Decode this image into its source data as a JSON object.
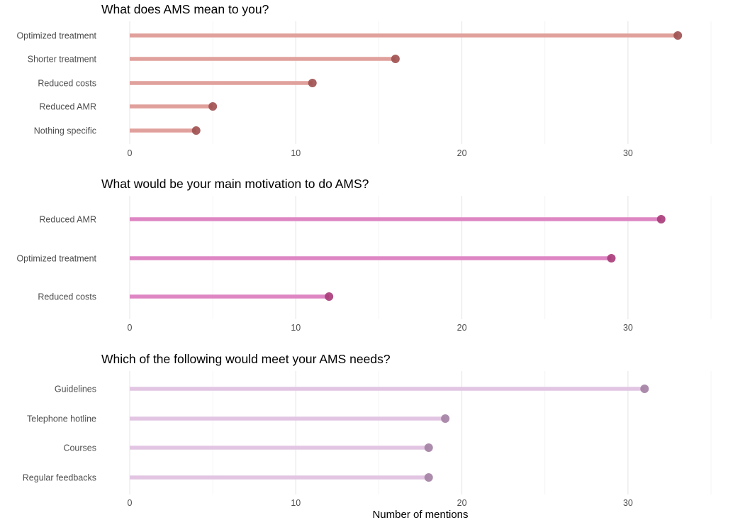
{
  "x_axis_label": "Number of mentions",
  "chart_data": [
    {
      "type": "lollipop",
      "title": "What does AMS mean to you?",
      "categories": [
        "Optimized treatment",
        "Shorter treatment",
        "Reduced costs",
        "Reduced AMR",
        "Nothing specific"
      ],
      "values": [
        33,
        16,
        11,
        5,
        4
      ],
      "xlim": [
        0,
        35
      ],
      "xticks": [
        0,
        10,
        20,
        30
      ],
      "grid": true,
      "colors": {
        "stem": "#e0a09c",
        "point": "#9e4f4f"
      }
    },
    {
      "type": "lollipop",
      "title": "What would be your main motivation to do AMS?",
      "categories": [
        "Reduced AMR",
        "Optimized treatment",
        "Reduced costs"
      ],
      "values": [
        32,
        29,
        12
      ],
      "xlim": [
        0,
        35
      ],
      "xticks": [
        0,
        10,
        20,
        30
      ],
      "grid": true,
      "colors": {
        "stem": "#de86c3",
        "point": "#a83a78"
      }
    },
    {
      "type": "lollipop",
      "title": "Which of the following would meet your AMS needs?",
      "categories": [
        "Guidelines",
        "Telephone hotline",
        "Courses",
        "Regular feedbacks"
      ],
      "values": [
        31,
        19,
        18,
        18
      ],
      "xlim": [
        0,
        35
      ],
      "xticks": [
        0,
        10,
        20,
        30
      ],
      "grid": true,
      "colors": {
        "stem": "#e2c5e2",
        "point": "#a37fa3"
      }
    }
  ]
}
